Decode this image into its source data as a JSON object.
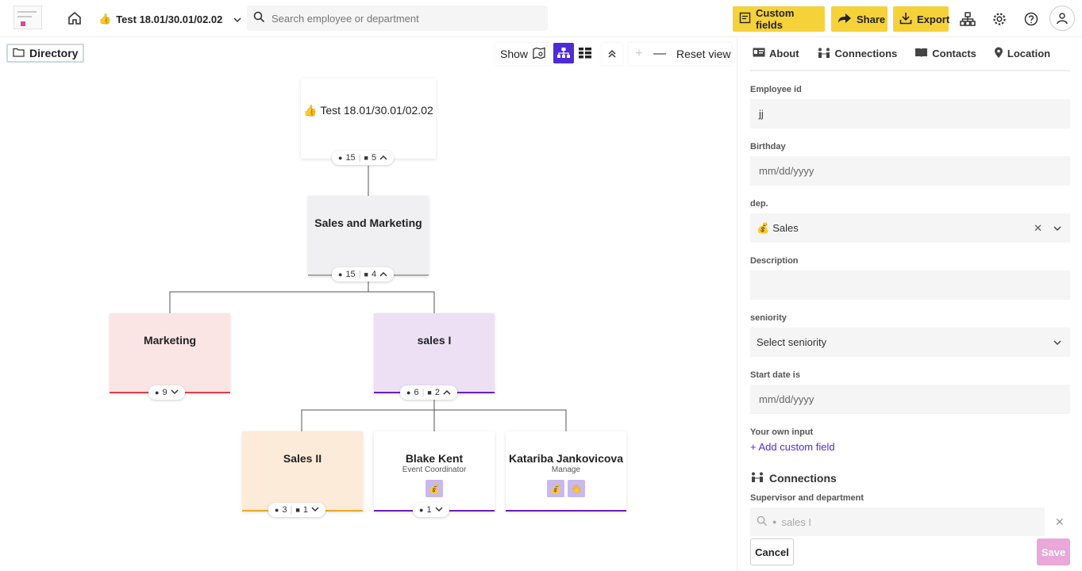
{
  "topbar": {
    "project_emoji": "👍",
    "project_name": "Test 18.01/30.01/02.02",
    "search_placeholder": "Search employee or department",
    "custom_fields_label": "Custom fields",
    "share_label": "Share",
    "export_label": "Export",
    "accent": "#f5d23a"
  },
  "canvas": {
    "directory_label": "Directory",
    "show_label": "Show",
    "reset_view_label": "Reset view",
    "zoom_in": "+",
    "zoom_out": "—",
    "mode_color": "#4f2bd6"
  },
  "nodes": {
    "root": {
      "emoji": "👍",
      "title": "Test 18.01/30.01/02.02",
      "employees": "15",
      "departments": "5"
    },
    "sales_marketing": {
      "title": "Sales and Marketing",
      "employees": "15",
      "departments": "4",
      "color": "#f0f0f2"
    },
    "marketing": {
      "title": "Marketing",
      "employees": "9",
      "color": "#fbe4e4",
      "underline": "#e04040"
    },
    "sales_i": {
      "title": "sales I",
      "employees": "6",
      "departments": "2",
      "color": "#ede0f5",
      "underline": "#6a1fc0"
    },
    "sales_ii": {
      "title": "Sales II",
      "employees": "3",
      "departments": "1",
      "color": "#fdebd9",
      "underline": "#f5a623"
    },
    "blake": {
      "title": "Blake Kent",
      "subtitle": "Event Coordinator",
      "badge1": "💰",
      "employees": "1",
      "underline": "#6a1fc0"
    },
    "katariba": {
      "title": "Katariba Jankovicova",
      "subtitle": "Manage",
      "badge1": "💰",
      "badge2": "👋",
      "underline": "#6a1fc0"
    }
  },
  "panel": {
    "tabs": {
      "about": "About",
      "connections": "Connections",
      "contacts": "Contacts",
      "location": "Location"
    },
    "employee_id_label": "Employee id",
    "employee_id_value": "jj",
    "birthday_label": "Birthday",
    "birthday_placeholder": "mm/dd/yyyy",
    "dep_label": "dep.",
    "dep_emoji": "💰",
    "dep_value": "Sales",
    "description_label": "Description",
    "seniority_label": "seniority",
    "seniority_placeholder": "Select seniority",
    "start_date_label": "Start date is",
    "start_date_placeholder": "mm/dd/yyyy",
    "own_input_label": "Your own input",
    "add_custom_field": "+ Add custom field",
    "connections_title": "Connections",
    "supervisor_label": "Supervisor and department",
    "supervisor_value": "sales I",
    "cancel_label": "Cancel",
    "save_label": "Save"
  }
}
